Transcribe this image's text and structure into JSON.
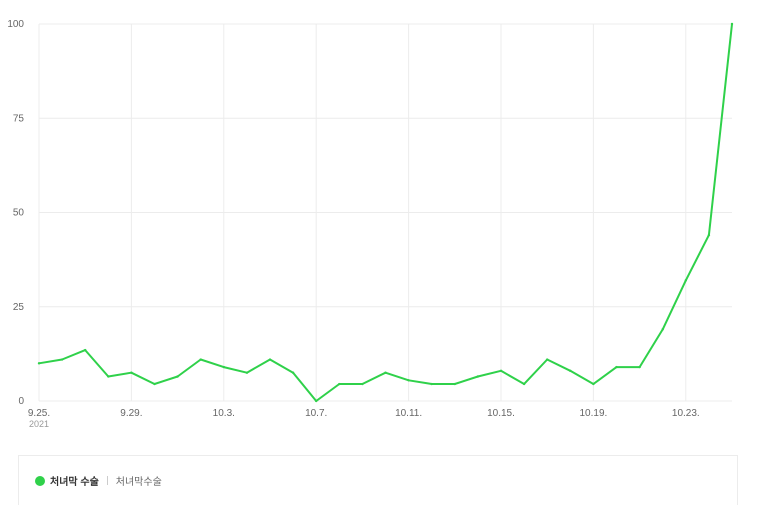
{
  "colors": {
    "series": "#2fd14a",
    "grid": "#ececec"
  },
  "chart_data": {
    "type": "line",
    "title": "",
    "xlabel": "",
    "ylabel": "",
    "ylim": [
      0,
      100
    ],
    "yticks": [
      0,
      25,
      50,
      75,
      100
    ],
    "x_tick_labels": [
      "9.25.",
      "9.29.",
      "10.3.",
      "10.7.",
      "10.11.",
      "10.15.",
      "10.19.",
      "10.23."
    ],
    "year_label": "2021",
    "grid": true,
    "legend_position": "bottom",
    "x": [
      "9.25.",
      "9.26.",
      "9.27.",
      "9.28.",
      "9.29.",
      "9.30.",
      "10.1.",
      "10.2.",
      "10.3.",
      "10.4.",
      "10.5.",
      "10.6.",
      "10.7.",
      "10.8.",
      "10.9.",
      "10.10.",
      "10.11.",
      "10.12.",
      "10.13.",
      "10.14.",
      "10.15.",
      "10.16.",
      "10.17.",
      "10.18.",
      "10.19.",
      "10.20.",
      "10.21.",
      "10.22.",
      "10.23.",
      "10.24.",
      "10.25."
    ],
    "series": [
      {
        "name": "처녀막 수술",
        "keyword": "처녀막수술",
        "values": [
          10,
          11,
          13.5,
          6.5,
          7.5,
          4.5,
          6.5,
          11,
          9,
          7.5,
          11,
          7.5,
          0,
          4.5,
          4.5,
          7.5,
          5.5,
          4.5,
          4.5,
          6.5,
          8,
          4.5,
          11,
          8,
          4.5,
          9,
          9,
          19,
          32,
          44,
          100
        ]
      }
    ]
  }
}
